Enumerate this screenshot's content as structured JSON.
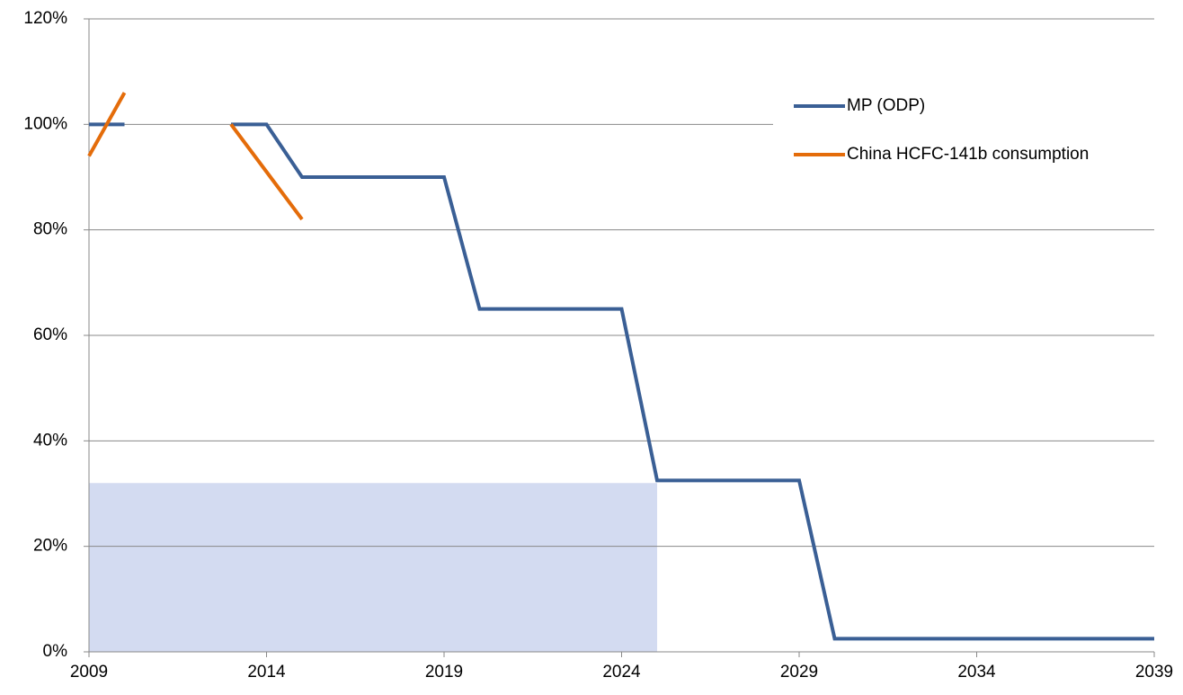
{
  "chart_data": {
    "type": "line",
    "x": [
      2009,
      2010,
      2011,
      2012,
      2013,
      2014,
      2015,
      2016,
      2017,
      2018,
      2019,
      2020,
      2021,
      2022,
      2023,
      2024,
      2025,
      2026,
      2027,
      2028,
      2029,
      2030,
      2031,
      2032,
      2033,
      2034,
      2035,
      2036,
      2037,
      2038,
      2039
    ],
    "xlim": [
      2009,
      2039
    ],
    "xticks": [
      2009,
      2014,
      2019,
      2024,
      2029,
      2034,
      2039
    ],
    "ylim": [
      0,
      120
    ],
    "yticks": [
      {
        "value": 0,
        "label": "0%"
      },
      {
        "value": 20,
        "label": "20%"
      },
      {
        "value": 40,
        "label": "40%"
      },
      {
        "value": 60,
        "label": "60%"
      },
      {
        "value": 80,
        "label": "80%"
      },
      {
        "value": 100,
        "label": "100%"
      },
      {
        "value": 120,
        "label": "120%"
      }
    ],
    "grid": true,
    "legend": "upper right",
    "area": {
      "color": "#c8d2ee",
      "values": [
        32,
        32,
        32,
        32,
        32,
        32,
        32,
        32,
        32,
        32,
        32,
        32,
        32,
        32,
        32,
        32,
        32,
        null,
        null,
        null,
        null,
        null,
        null,
        null,
        null,
        null,
        null,
        null,
        null,
        null,
        null
      ]
    },
    "series": [
      {
        "name": "MP (ODP)",
        "color": "#3a5f95",
        "values": [
          100,
          100,
          null,
          null,
          100,
          100,
          90,
          90,
          90,
          90,
          90,
          65,
          65,
          65,
          65,
          65,
          32.5,
          32.5,
          32.5,
          32.5,
          32.5,
          2.5,
          2.5,
          2.5,
          2.5,
          2.5,
          2.5,
          2.5,
          2.5,
          2.5,
          2.5
        ]
      },
      {
        "name": "China HCFC-141b consumption",
        "color": "#e46c0a",
        "values": [
          94,
          106,
          null,
          null,
          100,
          91,
          82,
          null,
          null,
          null,
          null,
          null,
          null,
          null,
          null,
          null,
          null,
          null,
          null,
          null,
          null,
          null,
          null,
          null,
          null,
          null,
          null,
          null,
          null,
          null,
          null
        ]
      }
    ]
  }
}
